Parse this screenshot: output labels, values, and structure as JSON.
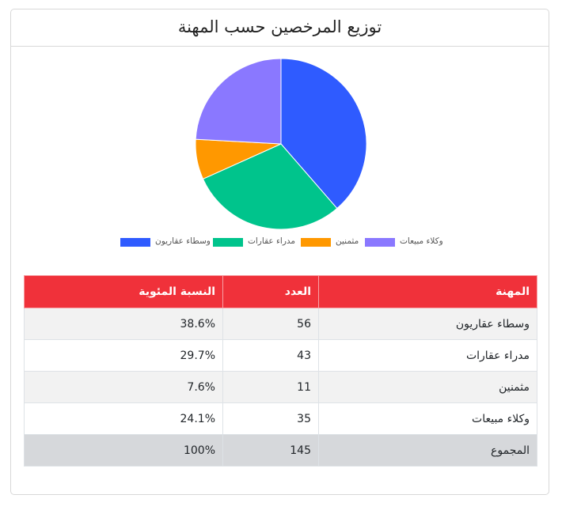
{
  "chart_data": {
    "type": "pie",
    "title": "توزيع المرخصين حسب المهنة",
    "slices": [
      {
        "label": "وسطاء عقاريون",
        "value": 56,
        "percent": 38.6,
        "color": "#2f5bff"
      },
      {
        "label": "مدراء عقارات",
        "value": 43,
        "percent": 29.7,
        "color": "#00c48c"
      },
      {
        "label": "مثمنين",
        "value": 11,
        "percent": 7.6,
        "color": "#ff9800"
      },
      {
        "label": "وكلاء مبيعات",
        "value": 35,
        "percent": 24.1,
        "color": "#8a78ff"
      }
    ],
    "legend_position": "bottom",
    "start_angle": "top, clockwise"
  },
  "table": {
    "headers": [
      "المهنة",
      "العدد",
      "النسبة المئوية"
    ],
    "rows": [
      [
        "وسطاء عقاريون",
        "56",
        "38.6%"
      ],
      [
        "مدراء عقارات",
        "43",
        "29.7%"
      ],
      [
        "مثمنين",
        "11",
        "7.6%"
      ],
      [
        "وكلاء مبيعات",
        "35",
        "24.1%"
      ]
    ],
    "total": [
      "المجموع",
      "145",
      "100%"
    ]
  },
  "colors": {
    "header_red": "#f0313a"
  }
}
